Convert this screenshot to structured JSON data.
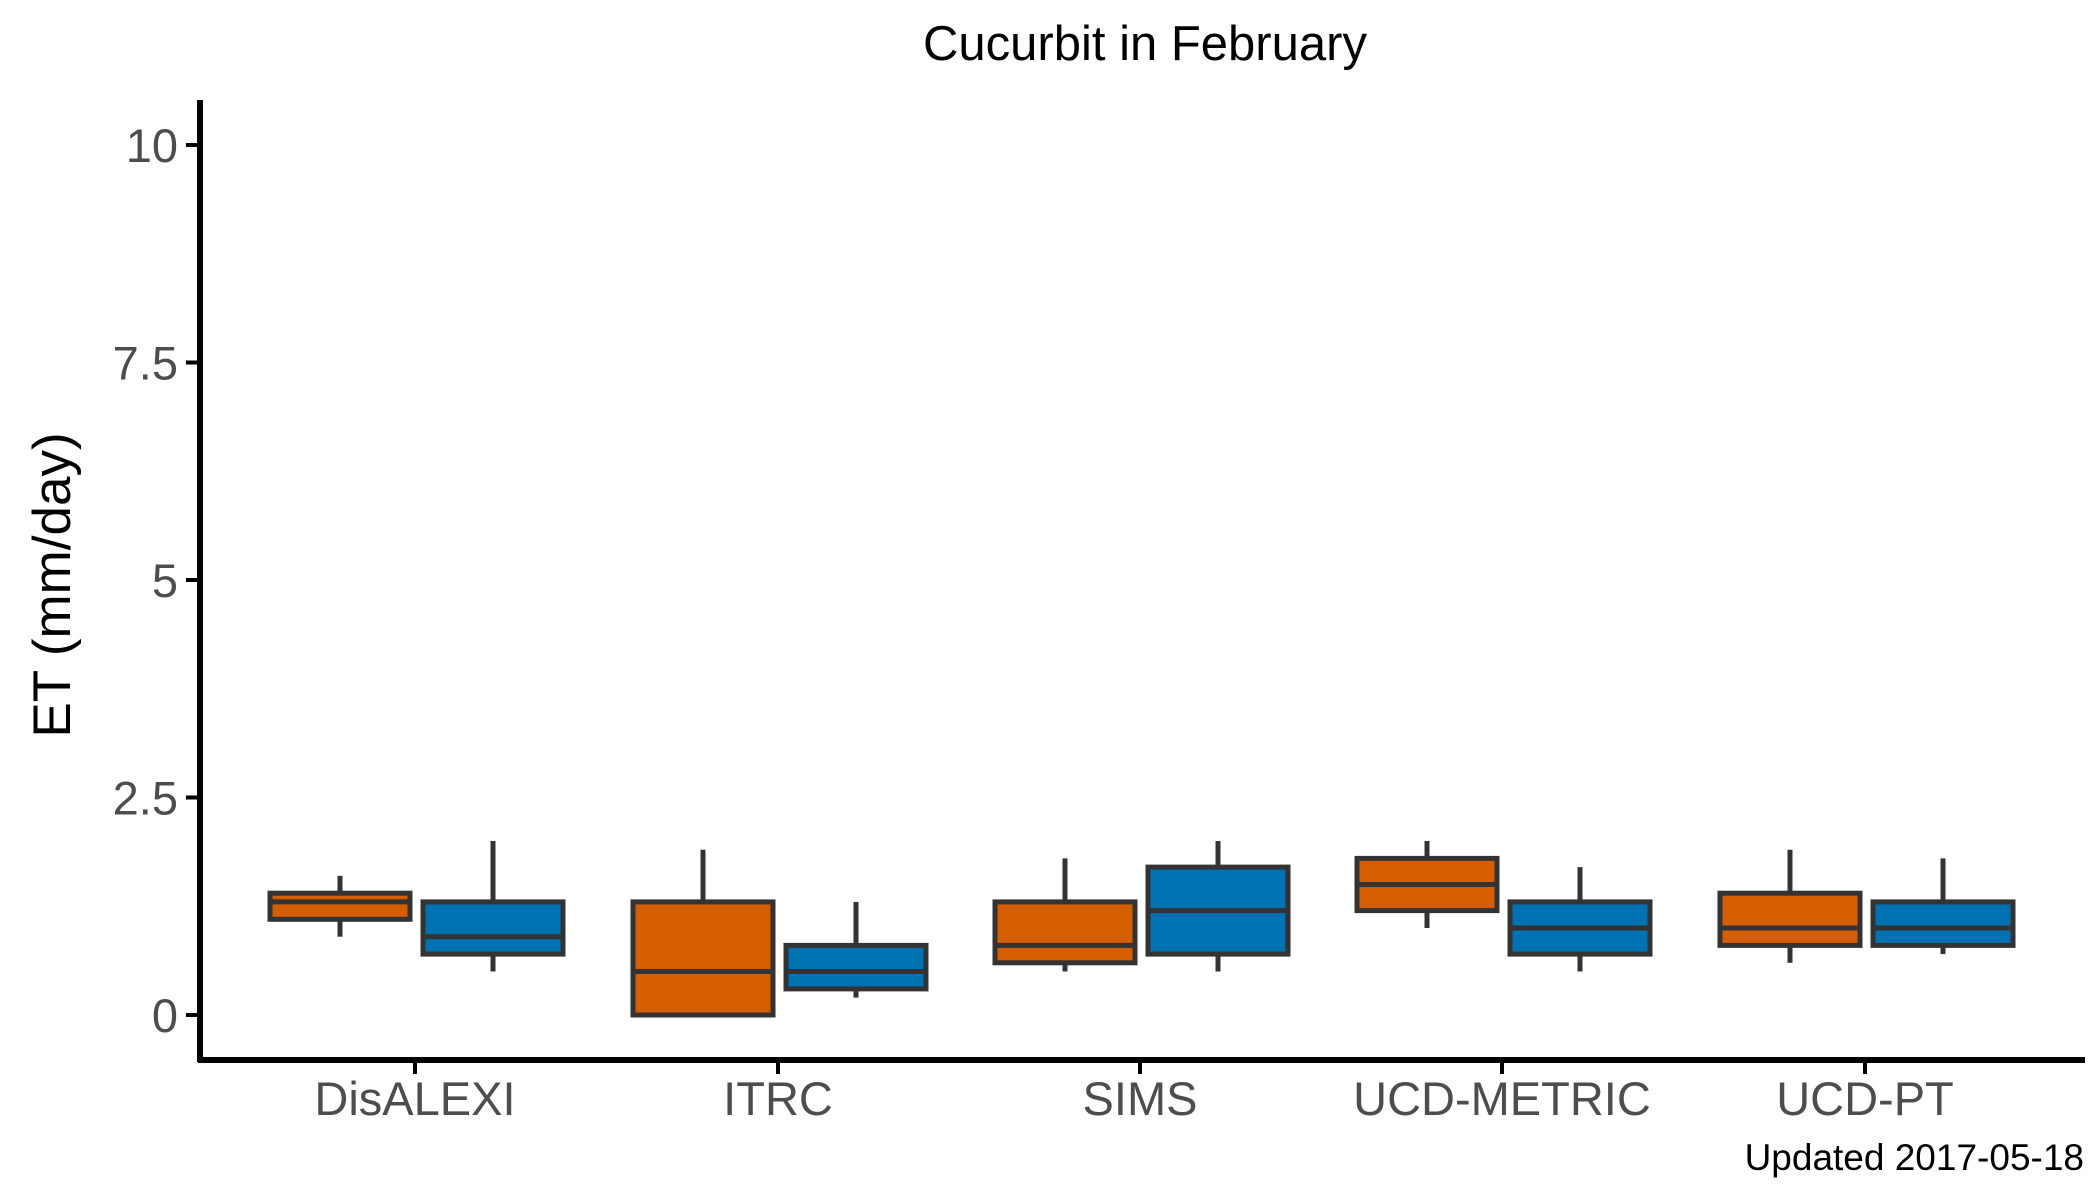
{
  "chart_data": {
    "type": "boxplot",
    "title": "Cucurbit in February",
    "xlabel": "",
    "ylabel": "ET (mm/day)",
    "ylim": [
      -0.5,
      10.5
    ],
    "y_ticks": [
      {
        "value": 0,
        "label": "0"
      },
      {
        "value": 2.5,
        "label": "2.5"
      },
      {
        "value": 5,
        "label": "5"
      },
      {
        "value": 7.5,
        "label": "7.5"
      },
      {
        "value": 10,
        "label": "10"
      }
    ],
    "categories": [
      "DisALEXI",
      "ITRC",
      "SIMS",
      "UCD-METRIC",
      "UCD-PT"
    ],
    "grid": false,
    "legend": "none",
    "series": [
      {
        "color": "#d55e00",
        "boxes": [
          {
            "min": 0.9,
            "q1": 1.1,
            "median": 1.3,
            "q3": 1.4,
            "max": 1.6
          },
          {
            "min": 0.0,
            "q1": 0.0,
            "median": 0.5,
            "q3": 1.3,
            "max": 1.9
          },
          {
            "min": 0.5,
            "q1": 0.6,
            "median": 0.8,
            "q3": 1.3,
            "max": 1.8
          },
          {
            "min": 1.0,
            "q1": 1.2,
            "median": 1.5,
            "q3": 1.8,
            "max": 2.0
          },
          {
            "min": 0.6,
            "q1": 0.8,
            "median": 1.0,
            "q3": 1.4,
            "max": 1.9
          }
        ]
      },
      {
        "color": "#0072b2",
        "boxes": [
          {
            "min": 0.5,
            "q1": 0.7,
            "median": 0.9,
            "q3": 1.3,
            "max": 2.0
          },
          {
            "min": 0.2,
            "q1": 0.3,
            "median": 0.5,
            "q3": 0.8,
            "max": 1.3
          },
          {
            "min": 0.5,
            "q1": 0.7,
            "median": 1.2,
            "q3": 1.7,
            "max": 2.0
          },
          {
            "min": 0.5,
            "q1": 0.7,
            "median": 1.0,
            "q3": 1.3,
            "max": 1.7
          },
          {
            "min": 0.7,
            "q1": 0.8,
            "median": 1.0,
            "q3": 1.3,
            "max": 1.8
          }
        ]
      }
    ],
    "footnote": "Updated  2017-05-18",
    "box_outline_color": "#333333",
    "axis_color": "#000000"
  }
}
